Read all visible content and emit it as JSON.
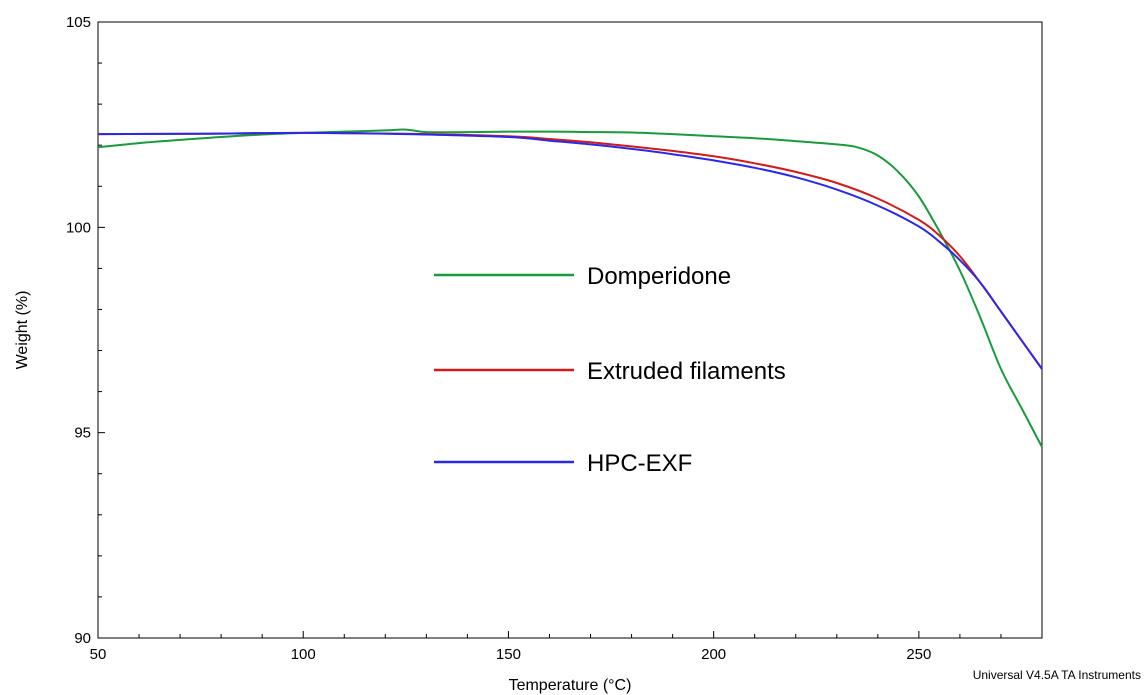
{
  "chart_data": {
    "type": "line",
    "title": "",
    "xlabel": "Temperature (°C)",
    "ylabel": "Weight (%)",
    "xlim": [
      50,
      280
    ],
    "ylim": [
      90,
      105
    ],
    "xticks": [
      50,
      100,
      150,
      200,
      250
    ],
    "yticks": [
      90,
      95,
      100,
      105
    ],
    "grid": false,
    "legend_position": "center",
    "series": [
      {
        "name": "Domperidone",
        "color": "#1a9a3c",
        "x": [
          50,
          60,
          70,
          80,
          90,
          100,
          110,
          120,
          125,
          130,
          140,
          150,
          160,
          170,
          180,
          190,
          200,
          210,
          220,
          230,
          235,
          240,
          245,
          250,
          255,
          260,
          265,
          270,
          275,
          280
        ],
        "y": [
          101.95,
          102.05,
          102.13,
          102.2,
          102.26,
          102.3,
          102.33,
          102.36,
          102.38,
          102.32,
          102.32,
          102.33,
          102.33,
          102.32,
          102.31,
          102.27,
          102.22,
          102.17,
          102.1,
          102.02,
          101.95,
          101.75,
          101.35,
          100.75,
          99.9,
          98.95,
          97.8,
          96.55,
          95.6,
          94.65
        ]
      },
      {
        "name": "Extruded filaments",
        "color": "#d01b1b",
        "x": [
          50,
          75,
          100,
          125,
          150,
          160,
          170,
          180,
          190,
          200,
          210,
          220,
          230,
          240,
          250,
          255,
          260,
          265,
          270,
          275,
          280
        ],
        "y": [
          102.27,
          102.28,
          102.3,
          102.28,
          102.22,
          102.15,
          102.07,
          101.97,
          101.86,
          101.73,
          101.56,
          101.35,
          101.08,
          100.7,
          100.18,
          99.8,
          99.3,
          98.65,
          97.95,
          97.25,
          96.55
        ]
      },
      {
        "name": "HPC-EXF",
        "color": "#2a2ae6",
        "x": [
          50,
          75,
          100,
          125,
          150,
          160,
          170,
          180,
          190,
          200,
          210,
          220,
          230,
          240,
          250,
          255,
          260,
          265,
          270,
          275,
          280
        ],
        "y": [
          102.27,
          102.28,
          102.3,
          102.27,
          102.2,
          102.11,
          102.02,
          101.91,
          101.78,
          101.63,
          101.45,
          101.22,
          100.92,
          100.53,
          100.02,
          99.65,
          99.2,
          98.65,
          97.95,
          97.25,
          96.55
        ]
      }
    ]
  },
  "footer": "Universal V4.5A TA Instruments"
}
